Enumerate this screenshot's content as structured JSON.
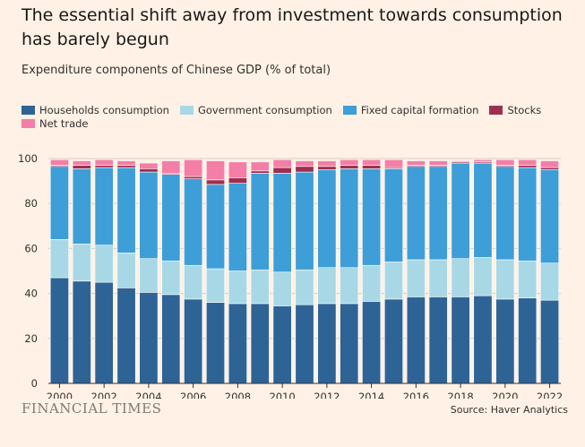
{
  "header": {
    "title": "The essential shift away from investment towards consumption has barely begun",
    "subtitle": "Expenditure components of Chinese GDP (% of total)"
  },
  "footer": {
    "logo": "FINANCIAL TIMES",
    "source": "Source: Haver Analytics"
  },
  "colors": {
    "background": "#fff1e5",
    "households": "#2e6396",
    "government": "#a8d8e6",
    "fixed_capital": "#3d9ed8",
    "stocks": "#9e2f50",
    "net_trade": "#f37fa6",
    "grid": "#d9cdc3",
    "axis": "#33302e"
  },
  "chart_data": {
    "type": "bar",
    "stacked": true,
    "categories": [
      "2000",
      "2001",
      "2002",
      "2003",
      "2004",
      "2005",
      "2006",
      "2007",
      "2008",
      "2009",
      "2010",
      "2011",
      "2012",
      "2013",
      "2014",
      "2015",
      "2016",
      "2017",
      "2018",
      "2019",
      "2020",
      "2021",
      "2022"
    ],
    "x_tick_labels": [
      "2000",
      "2002",
      "2004",
      "2006",
      "2008",
      "2010",
      "2012",
      "2014",
      "2016",
      "2018",
      "2020",
      "2022"
    ],
    "ylim": [
      0,
      100
    ],
    "yticks": [
      0,
      20,
      40,
      60,
      80,
      100
    ],
    "grid": true,
    "legend_position": "top-left",
    "series": [
      {
        "name": "Households consumption",
        "color": "#2e6396",
        "values": [
          47,
          45.5,
          45,
          42.5,
          40.5,
          39.5,
          37.5,
          36,
          35.5,
          35.5,
          34.5,
          35,
          35.5,
          35.5,
          36.5,
          37.5,
          38.5,
          38.5,
          38.5,
          39,
          37.5,
          38,
          37
        ]
      },
      {
        "name": "Government consumption",
        "color": "#a8d8e6",
        "values": [
          17,
          16.5,
          16.5,
          15.5,
          15,
          15,
          15,
          15,
          14.5,
          15,
          15,
          15.5,
          16,
          16,
          16,
          16.5,
          16.5,
          16.5,
          17,
          17,
          17.5,
          16.5,
          16.5
        ]
      },
      {
        "name": "Fixed capital formation",
        "color": "#3d9ed8",
        "values": [
          32.5,
          33.5,
          34.5,
          38,
          38.5,
          38.5,
          38.5,
          37.5,
          39,
          43,
          44,
          43.5,
          43.5,
          44,
          43,
          41.5,
          41.5,
          41.5,
          42.5,
          42,
          41.5,
          41.5,
          41.5
        ]
      },
      {
        "name": "Stocks",
        "color": "#9e2f50",
        "values": [
          0.5,
          1.5,
          1,
          1,
          1.5,
          0.5,
          1,
          2,
          2.5,
          1,
          2.5,
          2.5,
          1.5,
          1.5,
          1.5,
          0.5,
          0.5,
          0.5,
          0.5,
          0.5,
          0.5,
          1,
          1
        ]
      },
      {
        "name": "Net trade",
        "color": "#f37fa6",
        "values": [
          2.5,
          2,
          2.5,
          2,
          2.5,
          5.5,
          7.5,
          8.5,
          7,
          4,
          3.5,
          2.5,
          2.5,
          2.5,
          2.5,
          3.5,
          2,
          2,
          0.5,
          1,
          2.5,
          2.5,
          3
        ]
      }
    ]
  }
}
